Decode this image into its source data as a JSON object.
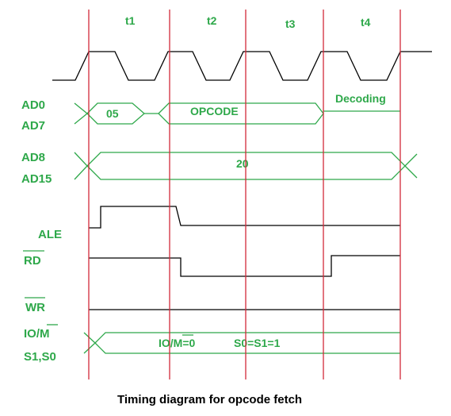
{
  "t_states": [
    "t1",
    "t2",
    "t3",
    "t4"
  ],
  "signals": {
    "ad0": "AD0",
    "ad7": "AD7",
    "ad8": "AD8",
    "ad15": "AD15",
    "ale": "ALE",
    "rd": "RD",
    "wr": "WR",
    "io_m": "IO/M",
    "s1s0": "S1,S0"
  },
  "bus_values": {
    "low_address": "05",
    "opcode": "OPCODE",
    "decoding": "Decoding",
    "high_address": "20",
    "io_m_value": "IO/M=0",
    "status_value": "S0=S1=1"
  },
  "caption": "Timing diagram for opcode fetch",
  "colors": {
    "label_green": "#2ea84a",
    "boundary_red": "#d22a3a",
    "clock_black": "#000000"
  }
}
